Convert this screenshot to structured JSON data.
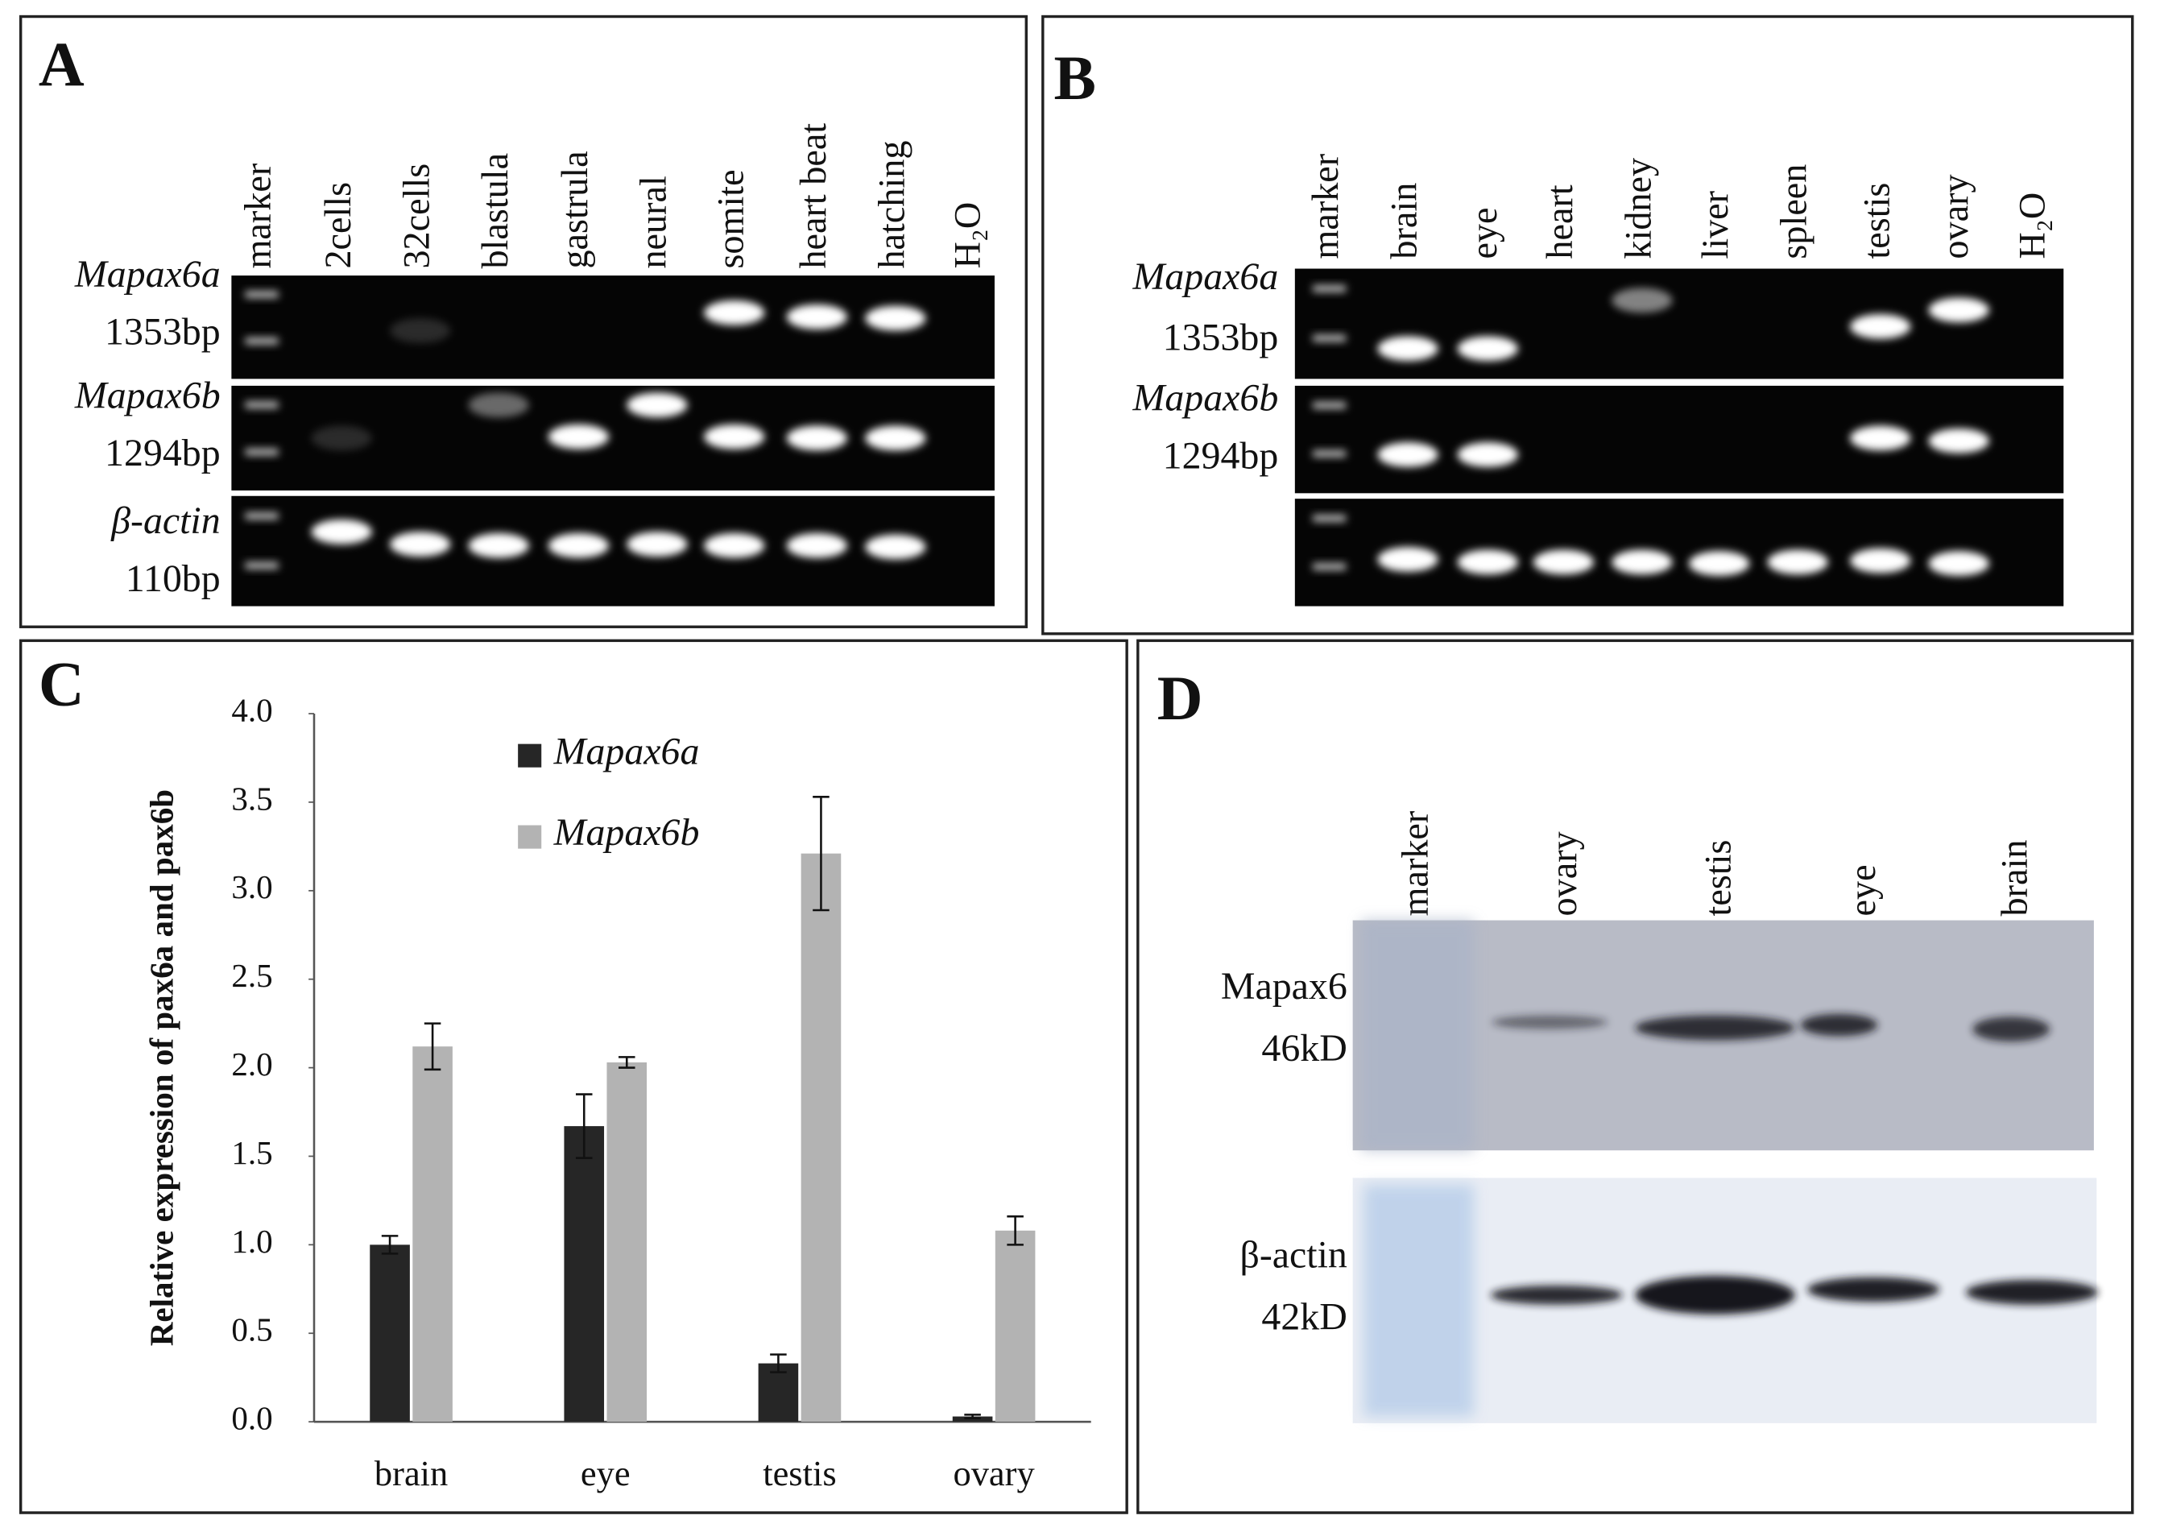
{
  "panel_a": {
    "letter": "A",
    "lanes": [
      "marker",
      "2cells",
      "32cells",
      "blastula",
      "gastrula",
      "neural",
      "somite",
      "heart beat",
      "hatching",
      "H₂O"
    ],
    "rows": [
      {
        "gene": "Mapax6a",
        "size": "1353bp"
      },
      {
        "gene": "Mapax6b",
        "size": "1294bp"
      },
      {
        "gene": "β-actin",
        "size": "110bp"
      }
    ]
  },
  "panel_b": {
    "letter": "B",
    "lanes": [
      "marker",
      "brain",
      "eye",
      "heart",
      "kidney",
      "liver",
      "spleen",
      "testis",
      "ovary",
      "H₂O"
    ],
    "rows": [
      {
        "gene": "Mapax6a",
        "size": "1353bp"
      },
      {
        "gene": "Mapax6b",
        "size": "1294bp"
      }
    ]
  },
  "chart_data": {
    "type": "bar",
    "panel": "C",
    "ylabel": "Relative expression of pax6a and pax6b",
    "categories": [
      "brain",
      "eye",
      "testis",
      "ovary"
    ],
    "series": [
      {
        "name": "Mapax6a",
        "color": "#262626",
        "values": [
          1.0,
          1.67,
          0.33,
          0.03
        ],
        "errors": [
          0.05,
          0.18,
          0.05,
          0.01
        ]
      },
      {
        "name": "Mapax6b",
        "color": "#b3b3b3",
        "values": [
          2.12,
          2.03,
          3.21,
          1.08
        ],
        "errors": [
          0.13,
          0.03,
          0.32,
          0.08
        ]
      }
    ],
    "ylim": [
      0,
      4
    ],
    "yticks": [
      {
        "value": 0,
        "label": "0.0"
      },
      0.5,
      {
        "value": 1,
        "label": "1.0"
      },
      1.5,
      {
        "value": 2,
        "label": "2.0"
      },
      2.5,
      {
        "value": 3,
        "label": "3.0"
      },
      3.5,
      {
        "value": 4,
        "label": "4.0"
      }
    ]
  },
  "panel_d": {
    "letter": "D",
    "lanes": [
      "marker",
      "ovary",
      "testis",
      "eye",
      "brain"
    ],
    "rows": [
      {
        "protein": "Mapax6",
        "size": "46kD"
      },
      {
        "protein": "β-actin",
        "size": "42kD"
      }
    ]
  }
}
